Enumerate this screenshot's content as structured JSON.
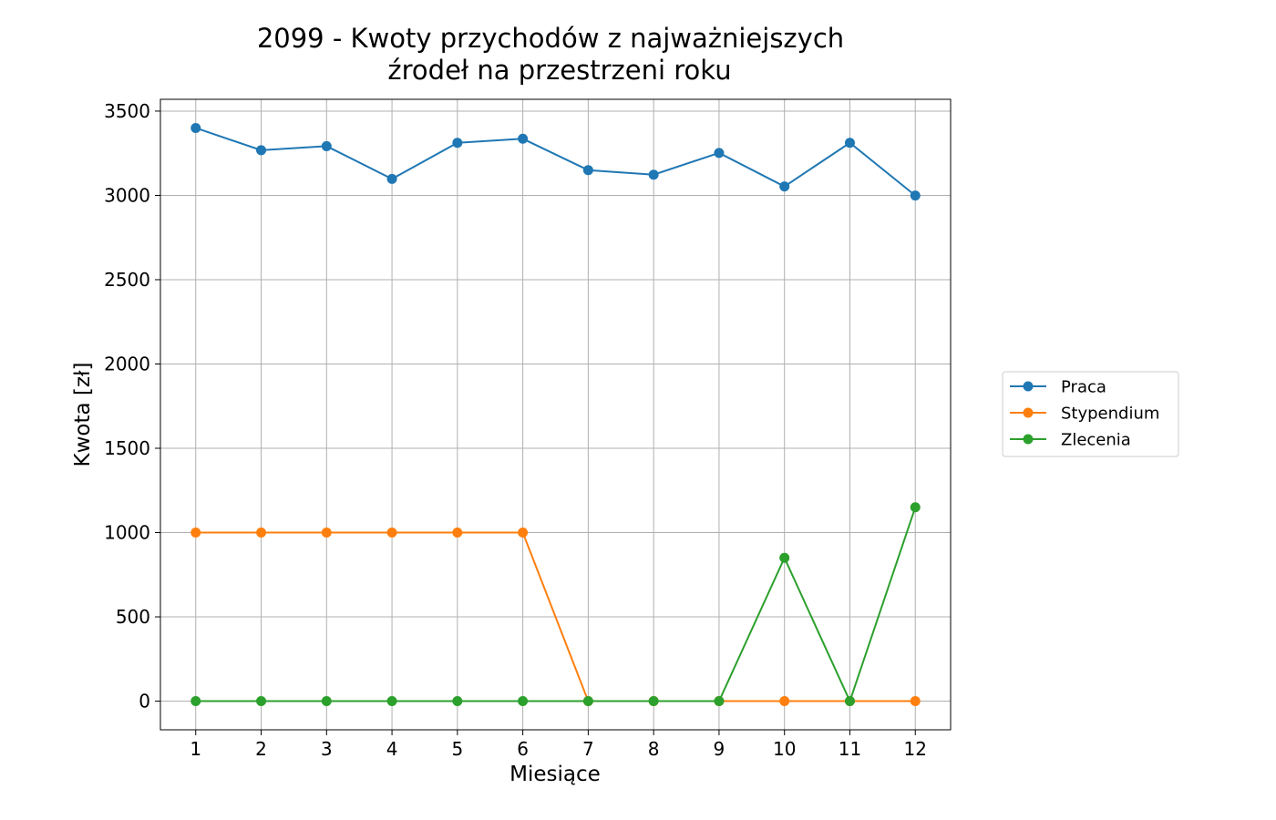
{
  "chart_data": {
    "type": "line",
    "title_line1": "2099 - Kwoty przychodów z najważniejszych",
    "title_line2": "źrodeł na przestrzeni roku",
    "xlabel": "Miesiące",
    "ylabel": "Kwota [zł]",
    "x": [
      1,
      2,
      3,
      4,
      5,
      6,
      7,
      8,
      9,
      10,
      11,
      12
    ],
    "x_tick_labels": [
      "1",
      "2",
      "3",
      "4",
      "5",
      "6",
      "7",
      "8",
      "9",
      "10",
      "11",
      "12"
    ],
    "y_ticks": [
      0,
      500,
      1000,
      1500,
      2000,
      2500,
      3000,
      3500
    ],
    "y_tick_labels": [
      "0",
      "500",
      "1000",
      "1500",
      "2000",
      "2500",
      "3000",
      "3500"
    ],
    "xlim": [
      0.46,
      12.54
    ],
    "ylim": [
      -170,
      3570
    ],
    "grid": true,
    "legend_position": "outside-right",
    "series": [
      {
        "name": "Praca",
        "color": "#1f77b4",
        "values": [
          3400,
          3268,
          3292,
          3098,
          3312,
          3336,
          3150,
          3123,
          3252,
          3053,
          3312,
          2999
        ]
      },
      {
        "name": "Stypendium",
        "color": "#ff7f0e",
        "values": [
          1000,
          1000,
          1000,
          1000,
          1000,
          1000,
          0,
          0,
          0,
          0,
          0,
          0
        ]
      },
      {
        "name": "Zlecenia",
        "color": "#2ca02c",
        "values": [
          0,
          0,
          0,
          0,
          0,
          0,
          0,
          0,
          0,
          850,
          0,
          1150
        ]
      }
    ]
  }
}
